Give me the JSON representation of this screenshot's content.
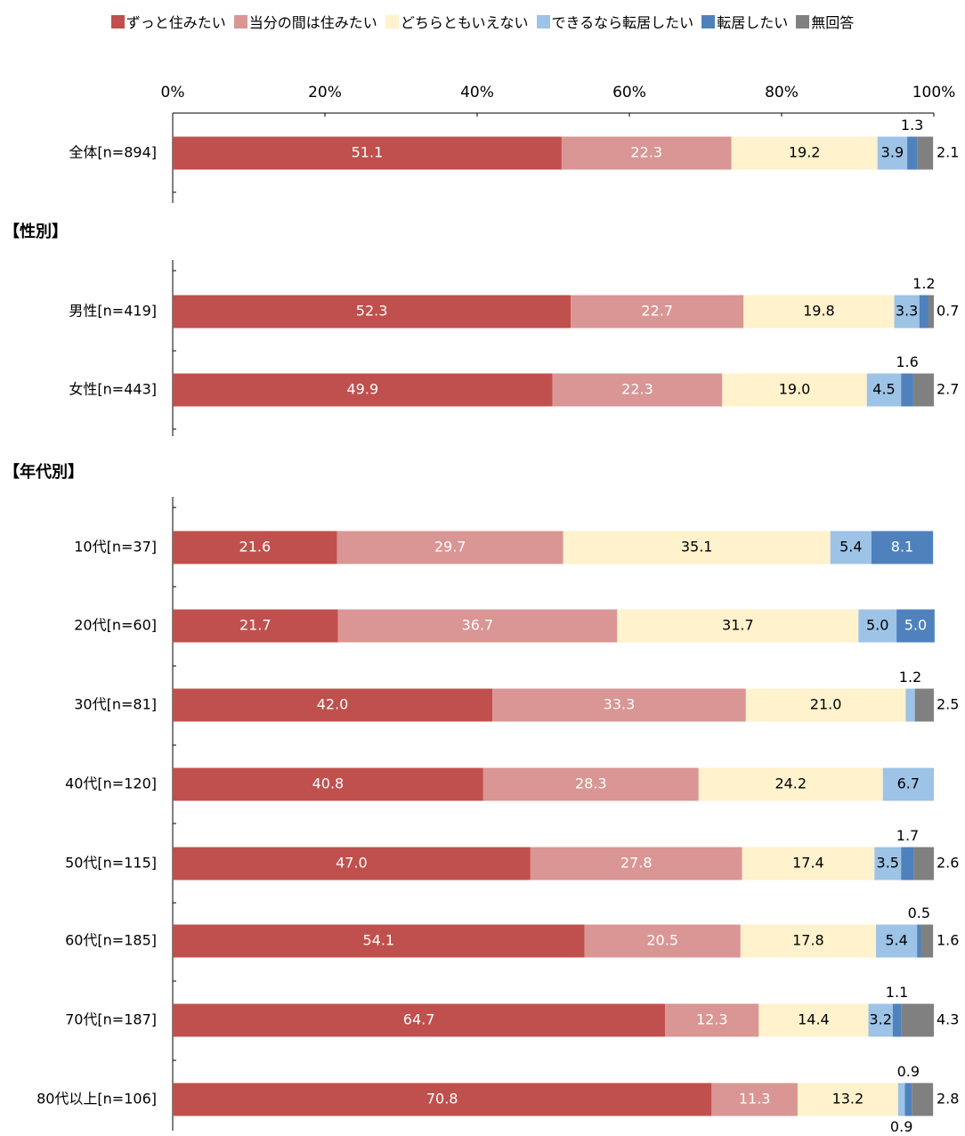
{
  "legend": [
    {
      "label": "ずっと住みたい",
      "color": "#C0504D"
    },
    {
      "label": "当分の間は住みたい",
      "color": "#D99694"
    },
    {
      "label": "どちらともいえない",
      "color": "#FFF2CC"
    },
    {
      "label": "できるなら転居したい",
      "color": "#9DC3E6"
    },
    {
      "label": "転居したい",
      "color": "#4F81BD"
    },
    {
      "label": "無回答",
      "color": "#808080"
    }
  ],
  "sections": {
    "gender": "【性別】",
    "age": "【年代別】"
  },
  "chart_data": {
    "type": "bar",
    "orientation": "horizontal",
    "stacked": true,
    "xlim": [
      0,
      100
    ],
    "x_ticks": [
      "0%",
      "20%",
      "40%",
      "60%",
      "80%",
      "100%"
    ],
    "x_tick_values": [
      0,
      20,
      40,
      60,
      80,
      100
    ],
    "categories": [
      "全体[n=894]",
      "男性[n=419]",
      "女性[n=443]",
      "10代[n=37]",
      "20代[n=60]",
      "30代[n=81]",
      "40代[n=120]",
      "50代[n=115]",
      "60代[n=185]",
      "70代[n=187]",
      "80代以上[n=106]"
    ],
    "series": [
      {
        "name": "ずっと住みたい",
        "values": [
          51.1,
          52.3,
          49.9,
          21.6,
          21.7,
          42.0,
          40.8,
          47.0,
          54.1,
          64.7,
          70.8
        ]
      },
      {
        "name": "当分の間は住みたい",
        "values": [
          22.3,
          22.7,
          22.3,
          29.7,
          36.7,
          33.3,
          28.3,
          27.8,
          20.5,
          12.3,
          11.3
        ]
      },
      {
        "name": "どちらともいえない",
        "values": [
          19.2,
          19.8,
          19.0,
          35.1,
          31.7,
          21.0,
          24.2,
          17.4,
          17.8,
          14.4,
          13.2
        ]
      },
      {
        "name": "できるなら転居したい",
        "values": [
          3.9,
          3.3,
          4.5,
          5.4,
          5.0,
          1.2,
          6.7,
          3.5,
          5.4,
          3.2,
          0.9
        ]
      },
      {
        "name": "転居したい",
        "values": [
          1.3,
          1.2,
          1.6,
          8.1,
          5.0,
          0.0,
          0.0,
          1.7,
          0.5,
          1.1,
          0.9
        ]
      },
      {
        "name": "無回答",
        "values": [
          2.1,
          0.7,
          2.7,
          0.0,
          0.0,
          2.5,
          0.0,
          2.6,
          1.6,
          4.3,
          2.8
        ]
      }
    ],
    "labels": [
      [
        {
          "s": 0,
          "text": "51.1"
        },
        {
          "s": 1,
          "text": "22.3"
        },
        {
          "s": 2,
          "text": "19.2"
        },
        {
          "s": 3,
          "text": "3.9"
        },
        {
          "s": 4,
          "text": "1.3",
          "pos": "above"
        },
        {
          "s": 5,
          "text": "2.1",
          "pos": "right"
        }
      ],
      [
        {
          "s": 0,
          "text": "52.3"
        },
        {
          "s": 1,
          "text": "22.7"
        },
        {
          "s": 2,
          "text": "19.8"
        },
        {
          "s": 3,
          "text": "3.3"
        },
        {
          "s": 4,
          "text": "1.2",
          "pos": "above"
        },
        {
          "s": 5,
          "text": "0.7",
          "pos": "right"
        }
      ],
      [
        {
          "s": 0,
          "text": "49.9"
        },
        {
          "s": 1,
          "text": "22.3"
        },
        {
          "s": 2,
          "text": "19.0"
        },
        {
          "s": 3,
          "text": "4.5"
        },
        {
          "s": 4,
          "text": "1.6",
          "pos": "above"
        },
        {
          "s": 5,
          "text": "2.7",
          "pos": "right"
        }
      ],
      [
        {
          "s": 0,
          "text": "21.6"
        },
        {
          "s": 1,
          "text": "29.7"
        },
        {
          "s": 2,
          "text": "35.1"
        },
        {
          "s": 3,
          "text": "5.4"
        },
        {
          "s": 4,
          "text": "8.1"
        }
      ],
      [
        {
          "s": 0,
          "text": "21.7"
        },
        {
          "s": 1,
          "text": "36.7"
        },
        {
          "s": 2,
          "text": "31.7"
        },
        {
          "s": 3,
          "text": "5.0"
        },
        {
          "s": 4,
          "text": "5.0"
        }
      ],
      [
        {
          "s": 0,
          "text": "42.0"
        },
        {
          "s": 1,
          "text": "33.3"
        },
        {
          "s": 2,
          "text": "21.0"
        },
        {
          "s": 3,
          "text": "1.2",
          "pos": "above"
        },
        {
          "s": 5,
          "text": "2.5",
          "pos": "right"
        }
      ],
      [
        {
          "s": 0,
          "text": "40.8"
        },
        {
          "s": 1,
          "text": "28.3"
        },
        {
          "s": 2,
          "text": "24.2"
        },
        {
          "s": 3,
          "text": "6.7"
        }
      ],
      [
        {
          "s": 0,
          "text": "47.0"
        },
        {
          "s": 1,
          "text": "27.8"
        },
        {
          "s": 2,
          "text": "17.4"
        },
        {
          "s": 3,
          "text": "3.5"
        },
        {
          "s": 4,
          "text": "1.7",
          "pos": "above"
        },
        {
          "s": 5,
          "text": "2.6",
          "pos": "right"
        }
      ],
      [
        {
          "s": 0,
          "text": "54.1"
        },
        {
          "s": 1,
          "text": "20.5"
        },
        {
          "s": 2,
          "text": "17.8"
        },
        {
          "s": 3,
          "text": "5.4"
        },
        {
          "s": 4,
          "text": "0.5",
          "pos": "above"
        },
        {
          "s": 5,
          "text": "1.6",
          "pos": "right"
        }
      ],
      [
        {
          "s": 0,
          "text": "64.7"
        },
        {
          "s": 1,
          "text": "12.3"
        },
        {
          "s": 2,
          "text": "14.4"
        },
        {
          "s": 3,
          "text": "3.2"
        },
        {
          "s": 4,
          "text": "1.1",
          "pos": "above"
        },
        {
          "s": 5,
          "text": "4.3",
          "pos": "right"
        }
      ],
      [
        {
          "s": 0,
          "text": "70.8"
        },
        {
          "s": 1,
          "text": "11.3"
        },
        {
          "s": 2,
          "text": "13.2"
        },
        {
          "s": 3,
          "text": "0.9",
          "pos": "below"
        },
        {
          "s": 4,
          "text": "0.9",
          "pos": "above"
        },
        {
          "s": 5,
          "text": "2.8",
          "pos": "right"
        }
      ]
    ]
  }
}
